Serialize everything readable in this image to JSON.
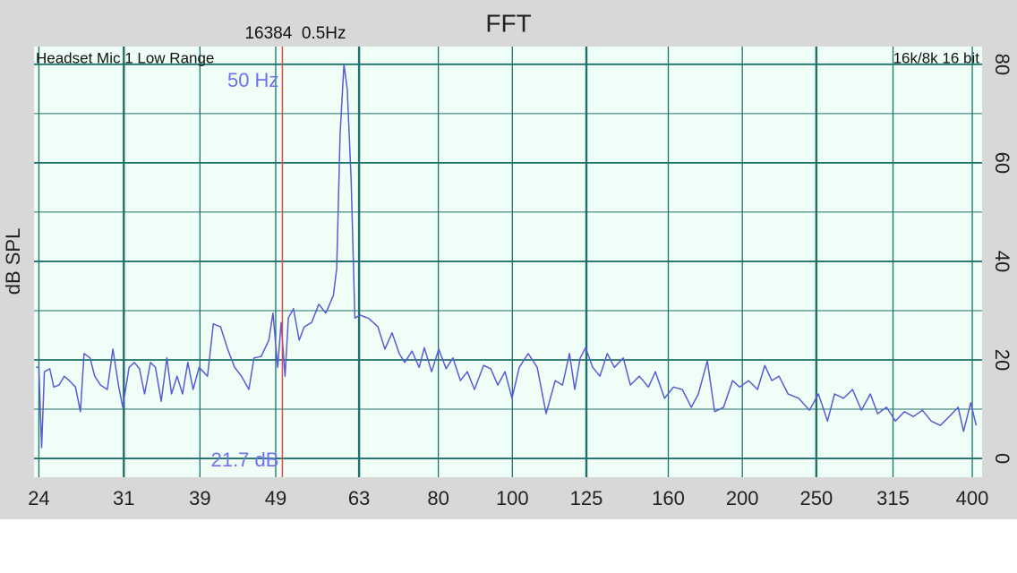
{
  "chart_data": {
    "type": "line",
    "title": "FFT",
    "subtitle": "16384  0.5Hz",
    "source_label": "Headset Mic 1 Low Range",
    "format_label": "16k/8k 16 bit",
    "ylabel": "dB SPL",
    "xscale": "log",
    "grid": true,
    "color": "#5a5ad6",
    "background": "#effff7",
    "grid_color": "#1f6f6a",
    "xlim": [
      23.65,
      412
    ],
    "ylim": [
      -3.8,
      83.6
    ],
    "xticks": [
      24,
      31,
      39,
      49,
      63,
      80,
      100,
      125,
      160,
      200,
      250,
      315,
      400
    ],
    "yticks": [
      0,
      20,
      40,
      60,
      80
    ],
    "yminor": [
      10,
      30,
      50,
      70
    ],
    "cursor": {
      "value": 50,
      "label": "50 Hz",
      "level_label": "21.7 dB",
      "color": "#e04848"
    },
    "x": [
      23.8,
      24.0,
      24.2,
      24.4,
      24.8,
      25.1,
      25.5,
      25.9,
      26.3,
      26.8,
      27.2,
      27.5,
      28.0,
      28.4,
      28.9,
      29.5,
      30.0,
      30.5,
      30.9,
      31.5,
      32.0,
      32.5,
      33.0,
      33.6,
      34.1,
      34.7,
      35.3,
      35.8,
      36.4,
      37.0,
      37.6,
      38.2,
      38.9,
      39.9,
      40.6,
      41.5,
      42.4,
      43.3,
      44.2,
      45.2,
      45.9,
      46.9,
      48.0,
      48.6,
      49.3,
      49.8,
      50.4,
      50.9,
      51.7,
      52.6,
      53.4,
      54.6,
      55.8,
      57.0,
      58.3,
      58.9,
      59.5,
      60.2,
      60.8,
      61.5,
      62.2,
      63.2,
      64.9,
      66.7,
      68.1,
      69.6,
      71.1,
      72.3,
      73.9,
      75.5,
      76.7,
      78.4,
      80.1,
      81.9,
      83.6,
      85.5,
      87.3,
      89.2,
      91.7,
      93.7,
      95.7,
      97.8,
      99.9,
      102.1,
      104.9,
      107.8,
      110.7,
      113.8,
      116.3,
      118.8,
      120.7,
      122.7,
      124.7,
      127.4,
      130.2,
      133.1,
      136.0,
      139.7,
      142.7,
      146.6,
      150.7,
      153.9,
      158.2,
      162.5,
      166.9,
      171.5,
      175.2,
      180.0,
      184.0,
      189.0,
      194.2,
      198.4,
      203.8,
      209.4,
      214.0,
      218.6,
      223.4,
      229.5,
      237.1,
      244.9,
      251.6,
      258.5,
      264.1,
      271.4,
      278.8,
      286.4,
      294.2,
      300.7,
      308.9,
      317.3,
      326.0,
      335.0,
      344.1,
      353.5,
      363.2,
      373.2,
      383.4,
      389.6,
      398.1,
      404.7
    ],
    "values": [
      18.5,
      18.5,
      2.2,
      17.6,
      18.2,
      14.5,
      14.9,
      16.7,
      15.8,
      14.5,
      9.5,
      21.3,
      20.4,
      16.7,
      14.9,
      14.0,
      22.2,
      14.9,
      10.4,
      18.5,
      19.5,
      18.2,
      13.1,
      19.5,
      18.5,
      11.6,
      20.4,
      13.1,
      16.7,
      13.1,
      19.5,
      14.0,
      18.5,
      16.7,
      27.3,
      26.7,
      22.2,
      18.5,
      16.7,
      14.0,
      20.4,
      20.7,
      24.0,
      29.5,
      18.5,
      27.6,
      16.7,
      28.5,
      30.4,
      24.0,
      26.7,
      27.6,
      31.3,
      29.5,
      33.1,
      38.5,
      65.8,
      80.0,
      74.9,
      56.7,
      28.5,
      29.1,
      28.4,
      26.7,
      22.2,
      25.5,
      21.3,
      19.5,
      21.8,
      18.5,
      22.5,
      17.6,
      22.2,
      18.2,
      20.4,
      15.8,
      17.6,
      14.0,
      18.9,
      18.2,
      14.9,
      17.6,
      12.2,
      18.5,
      21.3,
      18.5,
      9.1,
      15.8,
      14.9,
      21.3,
      14.0,
      20.4,
      22.5,
      18.5,
      16.7,
      21.3,
      18.5,
      20.4,
      14.9,
      16.7,
      14.5,
      17.6,
      12.2,
      14.5,
      14.0,
      10.4,
      13.1,
      19.8,
      9.5,
      10.4,
      15.8,
      14.5,
      15.8,
      14.0,
      18.9,
      15.8,
      16.7,
      13.1,
      12.2,
      9.8,
      13.1,
      7.6,
      13.1,
      12.2,
      14.0,
      9.8,
      13.1,
      9.1,
      10.4,
      7.6,
      9.5,
      8.5,
      9.8,
      7.6,
      6.7,
      8.5,
      10.4,
      5.5,
      11.3,
      6.7
    ]
  }
}
